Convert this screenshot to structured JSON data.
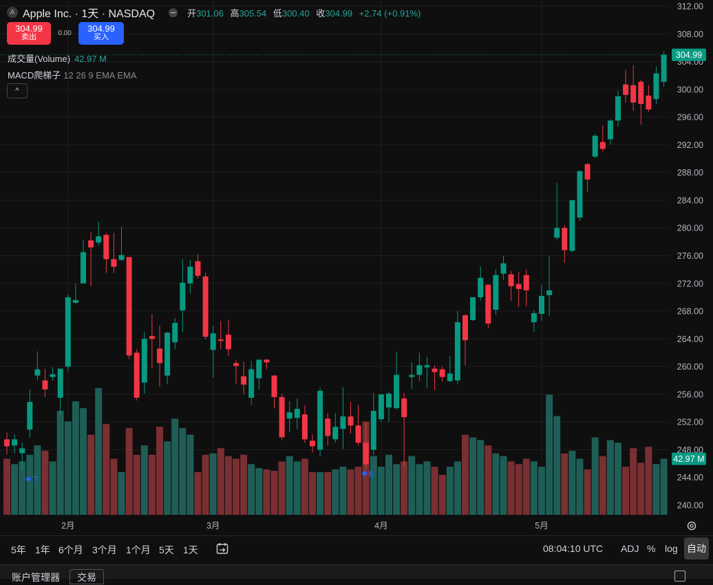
{
  "legend": {
    "logo": "A",
    "title": "Apple Inc. · 1天 · NASDAQ",
    "open_label": "开",
    "open": "301.06",
    "high_label": "高",
    "high": "305.54",
    "low_label": "低",
    "low": "300.40",
    "close_label": "收",
    "close": "304.99",
    "change": "+2.74 (+0.91%)"
  },
  "trade": {
    "sell_price": "304.99",
    "sell_label": "卖出",
    "spread": "0.00",
    "buy_price": "304.99",
    "buy_label": "买入"
  },
  "volume_legend": {
    "name": "成交量(Volume)",
    "value": "42.97 M"
  },
  "macd_legend": {
    "name": "MACD爬梯子",
    "params": "12 26 9 EMA EMA"
  },
  "collapse_label": "^",
  "price_tag": "304.99",
  "volume_tag": "42.97 M",
  "markers": [
    {
      "label": "7",
      "bar": 3
    },
    {
      "label": "8",
      "bar": 47
    }
  ],
  "bottom_bar": {
    "ranges": [
      "5年",
      "1年",
      "6个月",
      "3个月",
      "1个月",
      "5天",
      "1天"
    ],
    "time": "08:04:10 UTC",
    "adj": "ADJ",
    "percent": "%",
    "log": "log",
    "auto": "自动"
  },
  "account_bar": {
    "account_manager": "账户管理器",
    "trade_tab": "交易"
  },
  "colors": {
    "up": "#089981",
    "down": "#f23645",
    "vol_up": "#1f5e56",
    "vol_down": "#7a2f32",
    "tag": "#089981",
    "marker": "#2962ff"
  },
  "icons": [
    "logo-icon",
    "collapse-icon",
    "calendar-range-icon",
    "settings-gear-icon",
    "maximize-icon"
  ],
  "chart_data": {
    "type": "candlestick",
    "y_axis": {
      "ticks": [
        240,
        244,
        248,
        252,
        256,
        260,
        264,
        268,
        272,
        276,
        280,
        284,
        288,
        292,
        296,
        300,
        304,
        308,
        312
      ],
      "range": [
        238,
        313
      ]
    },
    "x_axis": {
      "labels": [
        {
          "text": "2月",
          "bar": 8
        },
        {
          "text": "3月",
          "bar": 27
        },
        {
          "text": "4月",
          "bar": 49
        },
        {
          "text": "5月",
          "bar": 70
        }
      ]
    },
    "last_price": 304.99,
    "candles": [
      {
        "o": 249.5,
        "h": 250.5,
        "l": 247.3,
        "c": 248.5
      },
      {
        "o": 248.6,
        "h": 250.2,
        "l": 247.5,
        "c": 249.5
      },
      {
        "o": 247.5,
        "h": 249.0,
        "l": 245.0,
        "c": 248.2
      },
      {
        "o": 250.9,
        "h": 256.7,
        "l": 249.7,
        "c": 254.9
      },
      {
        "o": 258.7,
        "h": 262.2,
        "l": 258.0,
        "c": 259.6
      },
      {
        "o": 258.0,
        "h": 259.7,
        "l": 255.6,
        "c": 256.7
      },
      {
        "o": 258.5,
        "h": 259.9,
        "l": 258.0,
        "c": 258.9
      },
      {
        "o": 255.5,
        "h": 259.7,
        "l": 253.0,
        "c": 259.7
      },
      {
        "o": 260.0,
        "h": 270.4,
        "l": 259.3,
        "c": 270.0
      },
      {
        "o": 269.2,
        "h": 272.0,
        "l": 269.0,
        "c": 269.6
      },
      {
        "o": 272.0,
        "h": 278.3,
        "l": 272.0,
        "c": 276.5
      },
      {
        "o": 278.2,
        "h": 279.5,
        "l": 271.6,
        "c": 277.2
      },
      {
        "o": 277.9,
        "h": 280.9,
        "l": 277.5,
        "c": 278.8
      },
      {
        "o": 279.0,
        "h": 279.3,
        "l": 273.5,
        "c": 275.5
      },
      {
        "o": 275.5,
        "h": 279.3,
        "l": 273.5,
        "c": 274.4
      },
      {
        "o": 275.4,
        "h": 280.2,
        "l": 275.2,
        "c": 276.1
      },
      {
        "o": 275.8,
        "h": 275.8,
        "l": 261.1,
        "c": 261.6
      },
      {
        "o": 262.0,
        "h": 262.5,
        "l": 255.1,
        "c": 255.5
      },
      {
        "o": 257.7,
        "h": 265.0,
        "l": 256.1,
        "c": 264.0
      },
      {
        "o": 264.4,
        "h": 267.6,
        "l": 259.7,
        "c": 264.0
      },
      {
        "o": 262.6,
        "h": 265.9,
        "l": 257.1,
        "c": 260.5
      },
      {
        "o": 258.7,
        "h": 265.0,
        "l": 257.5,
        "c": 264.9
      },
      {
        "o": 263.5,
        "h": 267.0,
        "l": 262.5,
        "c": 266.3
      },
      {
        "o": 268.1,
        "h": 275.5,
        "l": 265.0,
        "c": 272.1
      },
      {
        "o": 272.0,
        "h": 275.4,
        "l": 270.5,
        "c": 274.4
      },
      {
        "o": 275.2,
        "h": 276.2,
        "l": 272.7,
        "c": 273.1
      },
      {
        "o": 273.0,
        "h": 273.5,
        "l": 263.9,
        "c": 264.3
      },
      {
        "o": 262.4,
        "h": 265.9,
        "l": 258.4,
        "c": 264.8
      },
      {
        "o": 263.9,
        "h": 266.6,
        "l": 262.5,
        "c": 263.7
      },
      {
        "o": 264.6,
        "h": 266.7,
        "l": 261.5,
        "c": 262.5
      },
      {
        "o": 260.5,
        "h": 260.9,
        "l": 257.5,
        "c": 260.1
      },
      {
        "o": 258.6,
        "h": 260.7,
        "l": 256.0,
        "c": 257.4
      },
      {
        "o": 255.5,
        "h": 260.8,
        "l": 254.5,
        "c": 259.6
      },
      {
        "o": 258.3,
        "h": 261.0,
        "l": 256.7,
        "c": 261.0
      },
      {
        "o": 261.0,
        "h": 261.1,
        "l": 259.6,
        "c": 260.6
      },
      {
        "o": 258.7,
        "h": 258.8,
        "l": 254.0,
        "c": 255.6
      },
      {
        "o": 255.6,
        "h": 256.1,
        "l": 249.4,
        "c": 249.8
      },
      {
        "o": 252.5,
        "h": 255.0,
        "l": 250.5,
        "c": 253.4
      },
      {
        "o": 252.6,
        "h": 255.4,
        "l": 251.0,
        "c": 253.9
      },
      {
        "o": 253.1,
        "h": 254.4,
        "l": 249.0,
        "c": 249.5
      },
      {
        "o": 249.3,
        "h": 250.2,
        "l": 247.6,
        "c": 248.5
      },
      {
        "o": 248.0,
        "h": 257.0,
        "l": 247.0,
        "c": 256.5
      },
      {
        "o": 252.5,
        "h": 253.3,
        "l": 248.6,
        "c": 250.0
      },
      {
        "o": 249.5,
        "h": 253.3,
        "l": 249.0,
        "c": 251.3
      },
      {
        "o": 251.0,
        "h": 257.0,
        "l": 248.1,
        "c": 252.8
      },
      {
        "o": 252.8,
        "h": 254.9,
        "l": 250.3,
        "c": 251.5
      },
      {
        "o": 251.5,
        "h": 254.5,
        "l": 248.6,
        "c": 249.0
      },
      {
        "o": 249.0,
        "h": 251.9,
        "l": 245.3,
        "c": 245.9
      },
      {
        "o": 248.0,
        "h": 256.2,
        "l": 247.2,
        "c": 253.6
      },
      {
        "o": 252.4,
        "h": 256.0,
        "l": 252.0,
        "c": 256.0
      },
      {
        "o": 254.1,
        "h": 256.4,
        "l": 252.0,
        "c": 256.1
      },
      {
        "o": 254.0,
        "h": 262.1,
        "l": 253.8,
        "c": 258.8
      },
      {
        "o": 255.4,
        "h": 256.2,
        "l": 245.7,
        "c": 252.7
      },
      {
        "o": 258.5,
        "h": 260.6,
        "l": 256.8,
        "c": 258.8
      },
      {
        "o": 258.8,
        "h": 262.0,
        "l": 257.9,
        "c": 260.2
      },
      {
        "o": 259.9,
        "h": 261.4,
        "l": 256.9,
        "c": 260.2
      },
      {
        "o": 259.7,
        "h": 260.2,
        "l": 256.6,
        "c": 259.2
      },
      {
        "o": 259.6,
        "h": 260.0,
        "l": 257.8,
        "c": 258.5
      },
      {
        "o": 257.9,
        "h": 261.5,
        "l": 257.8,
        "c": 259.0
      },
      {
        "o": 258.0,
        "h": 268.0,
        "l": 257.5,
        "c": 266.4
      },
      {
        "o": 267.4,
        "h": 267.6,
        "l": 260.2,
        "c": 263.8
      },
      {
        "o": 266.7,
        "h": 270.0,
        "l": 266.6,
        "c": 270.0
      },
      {
        "o": 270.0,
        "h": 274.5,
        "l": 269.5,
        "c": 272.8
      },
      {
        "o": 271.8,
        "h": 271.9,
        "l": 265.5,
        "c": 266.2
      },
      {
        "o": 268.2,
        "h": 274.0,
        "l": 267.5,
        "c": 273.2
      },
      {
        "o": 273.4,
        "h": 276.0,
        "l": 272.5,
        "c": 274.9
      },
      {
        "o": 273.3,
        "h": 273.8,
        "l": 269.5,
        "c": 271.6
      },
      {
        "o": 271.9,
        "h": 273.7,
        "l": 268.6,
        "c": 271.2
      },
      {
        "o": 273.2,
        "h": 274.0,
        "l": 268.7,
        "c": 271.0
      },
      {
        "o": 266.4,
        "h": 268.1,
        "l": 265.0,
        "c": 267.7
      },
      {
        "o": 267.6,
        "h": 271.8,
        "l": 266.6,
        "c": 270.2
      },
      {
        "o": 270.3,
        "h": 276.0,
        "l": 267.3,
        "c": 271.0
      },
      {
        "o": 278.6,
        "h": 286.5,
        "l": 278.3,
        "c": 280.0
      },
      {
        "o": 280.0,
        "h": 280.4,
        "l": 275.0,
        "c": 276.8
      },
      {
        "o": 276.7,
        "h": 284.1,
        "l": 276.5,
        "c": 284.0
      },
      {
        "o": 281.5,
        "h": 288.3,
        "l": 281.0,
        "c": 288.2
      },
      {
        "o": 289.2,
        "h": 289.4,
        "l": 285.2,
        "c": 287.0
      },
      {
        "o": 290.3,
        "h": 293.6,
        "l": 290.1,
        "c": 293.3
      },
      {
        "o": 292.4,
        "h": 294.8,
        "l": 291.0,
        "c": 291.4
      },
      {
        "o": 292.8,
        "h": 295.7,
        "l": 292.0,
        "c": 295.5
      },
      {
        "o": 295.5,
        "h": 299.8,
        "l": 294.6,
        "c": 299.0
      },
      {
        "o": 300.7,
        "h": 302.8,
        "l": 298.1,
        "c": 299.2
      },
      {
        "o": 300.6,
        "h": 303.5,
        "l": 296.9,
        "c": 298.1
      },
      {
        "o": 301.1,
        "h": 301.4,
        "l": 294.9,
        "c": 297.9
      },
      {
        "o": 299.1,
        "h": 300.6,
        "l": 296.8,
        "c": 297.1
      },
      {
        "o": 298.6,
        "h": 303.3,
        "l": 297.9,
        "c": 302.3
      },
      {
        "o": 301.1,
        "h": 305.5,
        "l": 300.4,
        "c": 305.0
      }
    ],
    "volume": {
      "unit": "M",
      "axis_max": 98,
      "values": [
        42,
        38,
        40,
        45,
        52,
        48,
        40,
        78,
        70,
        85,
        80,
        60,
        95,
        68,
        42,
        32,
        65,
        45,
        52,
        45,
        66,
        55,
        72,
        65,
        60,
        32,
        45,
        46,
        50,
        44,
        42,
        45,
        38,
        35,
        34,
        33,
        40,
        44,
        40,
        42,
        32,
        32,
        32,
        34,
        36,
        34,
        36,
        70,
        44,
        36,
        45,
        38,
        40,
        44,
        38,
        40,
        36,
        30,
        36,
        40,
        60,
        58,
        56,
        52,
        46,
        44,
        40,
        38,
        42,
        40,
        36,
        90,
        74,
        46,
        48,
        42,
        34,
        58,
        44,
        56,
        54,
        36,
        50,
        39,
        51,
        38,
        42
      ]
    }
  }
}
